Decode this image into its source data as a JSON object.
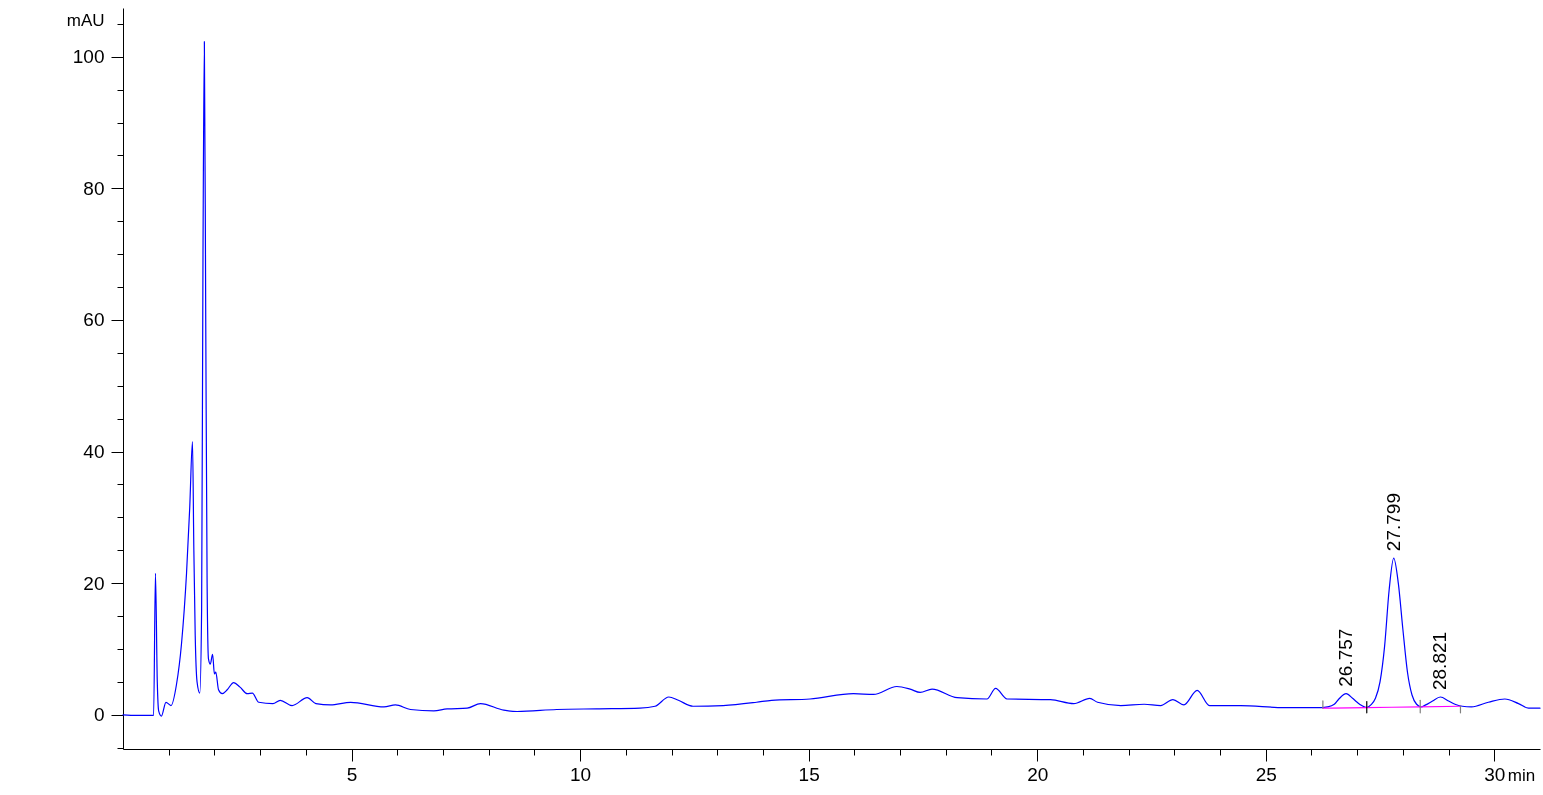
{
  "chart_data": {
    "type": "line",
    "xlabel": "min",
    "ylabel": "mAU",
    "xlim": [
      0,
      31
    ],
    "ylim": [
      -5.2,
      107.4
    ],
    "xticks": [
      {
        "value": 1,
        "label": null
      },
      {
        "value": 2,
        "label": null
      },
      {
        "value": 3,
        "label": null
      },
      {
        "value": 4,
        "label": null
      },
      5,
      {
        "value": 6,
        "label": null
      },
      {
        "value": 7,
        "label": null
      },
      {
        "value": 8,
        "label": null
      },
      {
        "value": 9,
        "label": null
      },
      10,
      {
        "value": 11,
        "label": null
      },
      {
        "value": 12,
        "label": null
      },
      {
        "value": 13,
        "label": null
      },
      {
        "value": 14,
        "label": null
      },
      15,
      {
        "value": 16,
        "label": null
      },
      {
        "value": 17,
        "label": null
      },
      {
        "value": 18,
        "label": null
      },
      {
        "value": 19,
        "label": null
      },
      20,
      {
        "value": 21,
        "label": null
      },
      {
        "value": 22,
        "label": null
      },
      {
        "value": 23,
        "label": null
      },
      {
        "value": 24,
        "label": null
      },
      25,
      {
        "value": 26,
        "label": null
      },
      {
        "value": 27,
        "label": null
      },
      {
        "value": 28,
        "label": null
      },
      {
        "value": 29,
        "label": null
      },
      30
    ],
    "yticks": [
      {
        "value": -5,
        "label": null
      },
      0,
      {
        "value": 5,
        "label": null
      },
      {
        "value": 10,
        "label": null
      },
      {
        "value": 15,
        "label": null
      },
      20,
      {
        "value": 25,
        "label": null
      },
      {
        "value": 30,
        "label": null
      },
      {
        "value": 35,
        "label": null
      },
      40,
      {
        "value": 45,
        "label": null
      },
      {
        "value": 50,
        "label": null
      },
      {
        "value": 55,
        "label": null
      },
      60,
      {
        "value": 65,
        "label": null
      },
      {
        "value": 70,
        "label": null
      },
      {
        "value": 75,
        "label": null
      },
      80,
      {
        "value": 85,
        "label": null
      },
      {
        "value": 90,
        "label": null
      },
      {
        "value": 95,
        "label": null
      },
      100,
      {
        "value": 105,
        "label": null
      }
    ],
    "series": [
      {
        "color": "#0000ff",
        "x": [
          0.0,
          0.3,
          0.67,
          0.71,
          0.75,
          0.78,
          0.84,
          0.94,
          1.05,
          1.17,
          1.28,
          1.39,
          1.46,
          1.52,
          1.55,
          1.58,
          1.62,
          1.68,
          1.72,
          1.75,
          1.78,
          1.81,
          1.84,
          1.87,
          1.91,
          1.96,
          2.0,
          2.03,
          2.09,
          2.17,
          2.28,
          2.42,
          2.56,
          2.72,
          2.83,
          2.97,
          3.28,
          3.44,
          3.7,
          4.03,
          4.22,
          4.54,
          4.98,
          5.71,
          5.96,
          6.29,
          6.8,
          7.09,
          7.53,
          7.82,
          8.33,
          8.62,
          9.49,
          10.36,
          11.31,
          11.64,
          11.94,
          12.15,
          12.47,
          13.13,
          13.86,
          14.19,
          15.03,
          15.98,
          16.42,
          16.93,
          17.22,
          17.44,
          17.7,
          18.25,
          18.9,
          19.09,
          19.34,
          20.29,
          20.8,
          21.15,
          21.32,
          21.83,
          22.34,
          22.7,
          22.97,
          23.21,
          23.5,
          23.77,
          24.45,
          25.4,
          26.21,
          26.35,
          26.5,
          26.6,
          26.76,
          26.9,
          27.0,
          27.1,
          27.21,
          27.3,
          27.4,
          27.5,
          27.6,
          27.7,
          27.8,
          27.9,
          28.0,
          28.1,
          28.2,
          28.3,
          28.4,
          28.5,
          28.65,
          28.82,
          29.0,
          29.14,
          29.3,
          29.5,
          29.87,
          30.23,
          30.53,
          30.75,
          31.0
        ],
        "values": [
          0.0,
          -0.1,
          -0.1,
          21.5,
          5,
          0.6,
          -0.2,
          1.9,
          1.4,
          4.6,
          10.8,
          21.5,
          31.5,
          41.5,
          25,
          12,
          5,
          3.3,
          16,
          70,
          102.3,
          60,
          20,
          8.5,
          7.7,
          9.2,
          6.2,
          6.5,
          3.8,
          3.2,
          3.8,
          4.9,
          4.2,
          3.2,
          3.3,
          1.9,
          1.7,
          2.2,
          1.4,
          2.6,
          1.7,
          1.5,
          1.9,
          1.2,
          1.5,
          0.8,
          0.6,
          0.9,
          1.0,
          1.7,
          0.7,
          0.5,
          0.8,
          0.9,
          1.0,
          1.3,
          2.7,
          2.2,
          1.3,
          1.4,
          1.9,
          2.2,
          2.4,
          3.2,
          3.1,
          4.3,
          3.9,
          3.4,
          3.9,
          2.6,
          2.4,
          4.0,
          2.4,
          2.3,
          1.7,
          2.5,
          1.9,
          1.4,
          1.6,
          1.4,
          2.3,
          1.5,
          3.7,
          1.4,
          1.4,
          1.1,
          1.1,
          1.2,
          1.6,
          2.4,
          3.2,
          2.5,
          1.9,
          1.4,
          1.1,
          1.5,
          2.5,
          5.0,
          10.4,
          19,
          23.8,
          20,
          13,
          6.5,
          3.0,
          1.6,
          1.2,
          1.5,
          2.1,
          2.7,
          2.1,
          1.6,
          1.3,
          1.2,
          1.9,
          2.4,
          1.7,
          1.0,
          1.0
        ]
      },
      {
        "color": "#ff00ff",
        "x": [
          26.25,
          27.21,
          28.38,
          29.26
        ],
        "values": [
          1.0,
          1.1,
          1.2,
          1.3
        ]
      },
      {
        "color": "#808080",
        "x": [
          26.25,
          26.25
        ],
        "values": [
          1.0,
          2.1
        ]
      },
      {
        "color": "#000000",
        "x": [
          27.21,
          27.21
        ],
        "values": [
          0.3,
          2.0
        ]
      },
      {
        "color": "#808080",
        "x": [
          28.38,
          28.38
        ],
        "values": [
          0.3,
          2.2
        ]
      },
      {
        "color": "#808080",
        "x": [
          29.26,
          29.26
        ],
        "values": [
          0.3,
          1.3
        ]
      }
    ],
    "annotations": [
      {
        "text": "26.757",
        "x": 26.757,
        "y": 3.2
      },
      {
        "text": "27.799",
        "x": 27.799,
        "y": 23.8
      },
      {
        "text": "28.821",
        "x": 28.821,
        "y": 2.7
      }
    ]
  }
}
